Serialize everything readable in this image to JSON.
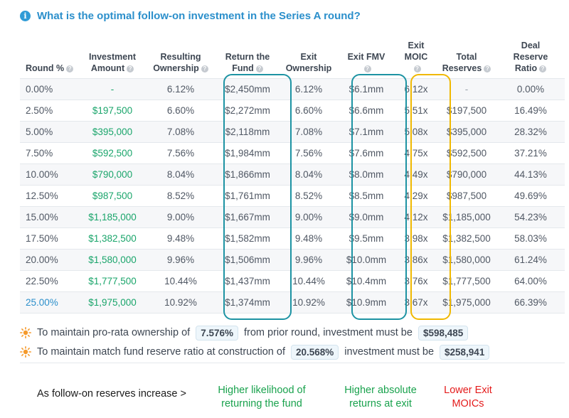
{
  "question": {
    "icon": "info-icon",
    "text": "What is the optimal follow-on investment in the Series A round?"
  },
  "table": {
    "headers": [
      {
        "l1": "",
        "l2": "",
        "l3": "Round %"
      },
      {
        "l1": "",
        "l2": "Investment",
        "l3": "Amount"
      },
      {
        "l1": "",
        "l2": "Resulting",
        "l3": "Ownership"
      },
      {
        "l1": "",
        "l2": "Return the",
        "l3": "Fund"
      },
      {
        "l1": "Exit",
        "l2": "Ownership",
        "l3": ""
      },
      {
        "l1": "",
        "l2": "Exit FMV",
        "l3": ""
      },
      {
        "l1": "Exit",
        "l2": "MOIC",
        "l3": ""
      },
      {
        "l1": "",
        "l2": "Total",
        "l3": "Reserves"
      },
      {
        "l1": "Deal",
        "l2": "Reserve",
        "l3": "Ratio"
      }
    ],
    "rows": [
      [
        "0.00%",
        "-",
        "6.12%",
        "$2,450mm",
        "6.12%",
        "$6.1mm",
        "6.12x",
        "-",
        "0.00%"
      ],
      [
        "2.50%",
        "$197,500",
        "6.60%",
        "$2,272mm",
        "6.60%",
        "$6.6mm",
        "5.51x",
        "$197,500",
        "16.49%"
      ],
      [
        "5.00%",
        "$395,000",
        "7.08%",
        "$2,118mm",
        "7.08%",
        "$7.1mm",
        "5.08x",
        "$395,000",
        "28.32%"
      ],
      [
        "7.50%",
        "$592,500",
        "7.56%",
        "$1,984mm",
        "7.56%",
        "$7.6mm",
        "4.75x",
        "$592,500",
        "37.21%"
      ],
      [
        "10.00%",
        "$790,000",
        "8.04%",
        "$1,866mm",
        "8.04%",
        "$8.0mm",
        "4.49x",
        "$790,000",
        "44.13%"
      ],
      [
        "12.50%",
        "$987,500",
        "8.52%",
        "$1,761mm",
        "8.52%",
        "$8.5mm",
        "4.29x",
        "$987,500",
        "49.69%"
      ],
      [
        "15.00%",
        "$1,185,000",
        "9.00%",
        "$1,667mm",
        "9.00%",
        "$9.0mm",
        "4.12x",
        "$1,185,000",
        "54.23%"
      ],
      [
        "17.50%",
        "$1,382,500",
        "9.48%",
        "$1,582mm",
        "9.48%",
        "$9.5mm",
        "3.98x",
        "$1,382,500",
        "58.03%"
      ],
      [
        "20.00%",
        "$1,580,000",
        "9.96%",
        "$1,506mm",
        "9.96%",
        "$10.0mm",
        "3.86x",
        "$1,580,000",
        "61.24%"
      ],
      [
        "22.50%",
        "$1,777,500",
        "10.44%",
        "$1,437mm",
        "10.44%",
        "$10.4mm",
        "3.76x",
        "$1,777,500",
        "64.00%"
      ],
      [
        "25.00%",
        "$1,975,000",
        "10.92%",
        "$1,374mm",
        "10.92%",
        "$10.9mm",
        "3.67x",
        "$1,975,000",
        "66.39%"
      ]
    ]
  },
  "notes": {
    "icon": "sun-icon",
    "prorata": {
      "before": "To maintain pro-rata ownership of",
      "value": "7.576%",
      "middle": "from prior round, investment must be",
      "amount": "$598,485"
    },
    "reserve": {
      "before": "To maintain match fund reserve ratio at construction of",
      "value": "20.568%",
      "middle": "investment must be",
      "amount": "$258,941"
    }
  },
  "captions": {
    "left": "As follow-on reserves increase >",
    "c1": {
      "line1": "Higher likelihood of",
      "line2": "returning the fund"
    },
    "c2": {
      "line1": "Higher absolute",
      "line2": "returns at exit"
    },
    "c3": {
      "line1": "Lower Exit",
      "line2": "MOICs"
    }
  },
  "colors": {
    "accent_blue": "#2b8fcb",
    "money_green": "#1aa56b",
    "highlight_teal": "#1d93a3",
    "highlight_gold": "#f0b800",
    "caption_green": "#19a24d",
    "caption_red": "#e41b1b"
  }
}
